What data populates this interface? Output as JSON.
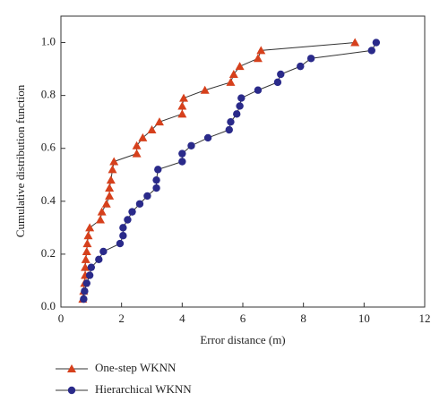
{
  "chart_data": {
    "type": "line",
    "x_label": "Error distance (m)",
    "y_label": "Cumulative distribution function",
    "xlim": [
      0,
      12
    ],
    "xticks": [
      0,
      2,
      4,
      6,
      8,
      10,
      12
    ],
    "ylim": [
      0,
      1.1
    ],
    "yticks": [
      {
        "value": 0,
        "label": "0.0"
      },
      {
        "value": 0.2,
        "label": "0.2"
      },
      {
        "value": 0.4,
        "label": "0.4"
      },
      {
        "value": 0.6,
        "label": "0.6"
      },
      {
        "value": 0.8,
        "label": "0.8"
      },
      {
        "value": 1,
        "label": "1.0"
      }
    ],
    "legend": "bottom-left",
    "series": [
      {
        "name": "One-step WKNN",
        "color": "#d6401c",
        "marker": "triangle",
        "x": [
          0.72,
          0.75,
          0.78,
          0.8,
          0.8,
          0.82,
          0.85,
          0.87,
          0.9,
          0.95,
          1.3,
          1.35,
          1.5,
          1.6,
          1.6,
          1.65,
          1.7,
          1.75,
          2.5,
          2.5,
          2.7,
          3.0,
          3.25,
          4.0,
          4.0,
          4.05,
          4.75,
          5.6,
          5.7,
          5.9,
          6.5,
          6.6,
          9.7
        ],
        "values": [
          0.03,
          0.06,
          0.09,
          0.12,
          0.15,
          0.18,
          0.21,
          0.24,
          0.27,
          0.3,
          0.33,
          0.36,
          0.39,
          0.42,
          0.45,
          0.48,
          0.52,
          0.55,
          0.58,
          0.61,
          0.64,
          0.67,
          0.7,
          0.73,
          0.76,
          0.79,
          0.82,
          0.85,
          0.88,
          0.91,
          0.94,
          0.97,
          1.0
        ]
      },
      {
        "name": "Hierarchical WKNN",
        "color": "#2a2a8a",
        "marker": "circle",
        "x": [
          0.75,
          0.78,
          0.85,
          0.95,
          1.0,
          1.25,
          1.4,
          1.95,
          2.05,
          2.05,
          2.2,
          2.35,
          2.6,
          2.85,
          3.15,
          3.15,
          3.2,
          4.0,
          4.0,
          4.3,
          4.85,
          5.55,
          5.6,
          5.8,
          5.9,
          5.95,
          6.5,
          7.15,
          7.25,
          7.9,
          8.25,
          10.25,
          10.4
        ],
        "values": [
          0.03,
          0.06,
          0.09,
          0.12,
          0.15,
          0.18,
          0.21,
          0.24,
          0.27,
          0.3,
          0.33,
          0.36,
          0.39,
          0.42,
          0.45,
          0.48,
          0.52,
          0.55,
          0.58,
          0.61,
          0.64,
          0.67,
          0.7,
          0.73,
          0.76,
          0.79,
          0.82,
          0.85,
          0.88,
          0.91,
          0.94,
          0.97,
          1.0
        ]
      }
    ]
  }
}
